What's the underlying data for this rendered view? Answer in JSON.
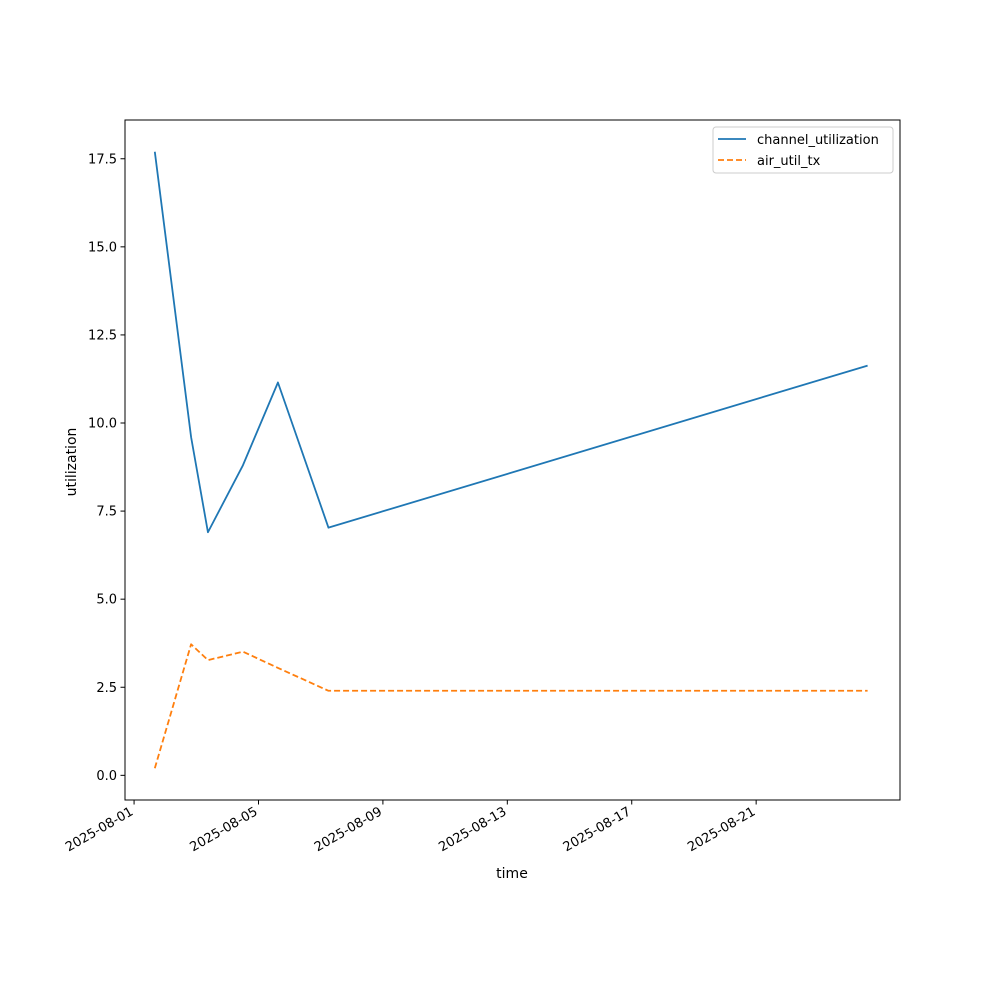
{
  "chart_data": {
    "type": "line",
    "title": "",
    "xlabel": "time",
    "ylabel": "utilization",
    "x_type": "date",
    "xlim": [
      "2025-07-31T17:00",
      "2025-08-25T15:00"
    ],
    "ylim": [
      -0.7,
      18.6
    ],
    "x_ticks": [
      "2025-08-01",
      "2025-08-05",
      "2025-08-09",
      "2025-08-13",
      "2025-08-17",
      "2025-08-21"
    ],
    "y_ticks": [
      0.0,
      2.5,
      5.0,
      7.5,
      10.0,
      12.5,
      15.0,
      17.5
    ],
    "y_tick_labels": [
      "0.0",
      "2.5",
      "5.0",
      "7.5",
      "10.0",
      "12.5",
      "15.0",
      "17.5"
    ],
    "grid": false,
    "legend_position": "top-right",
    "series": [
      {
        "name": "channel_utilization",
        "color": "#1f77b4",
        "style": "solid",
        "points": [
          {
            "x": "2025-08-01T16:00",
            "y": 17.7
          },
          {
            "x": "2025-08-02T20:00",
            "y": 9.6
          },
          {
            "x": "2025-08-03T09:00",
            "y": 6.9
          },
          {
            "x": "2025-08-04T12:00",
            "y": 8.8
          },
          {
            "x": "2025-08-05T15:00",
            "y": 11.15
          },
          {
            "x": "2025-08-07T06:00",
            "y": 7.03
          },
          {
            "x": "2025-08-24T14:00",
            "y": 11.63
          }
        ]
      },
      {
        "name": "air_util_tx",
        "color": "#ff7f0e",
        "style": "dashed",
        "points": [
          {
            "x": "2025-08-01T16:00",
            "y": 0.2
          },
          {
            "x": "2025-08-02T20:00",
            "y": 3.72
          },
          {
            "x": "2025-08-03T09:00",
            "y": 3.27
          },
          {
            "x": "2025-08-04T12:00",
            "y": 3.51
          },
          {
            "x": "2025-08-05T15:00",
            "y": 3.05
          },
          {
            "x": "2025-08-07T06:00",
            "y": 2.4
          },
          {
            "x": "2025-08-24T14:00",
            "y": 2.4
          }
        ]
      }
    ]
  }
}
